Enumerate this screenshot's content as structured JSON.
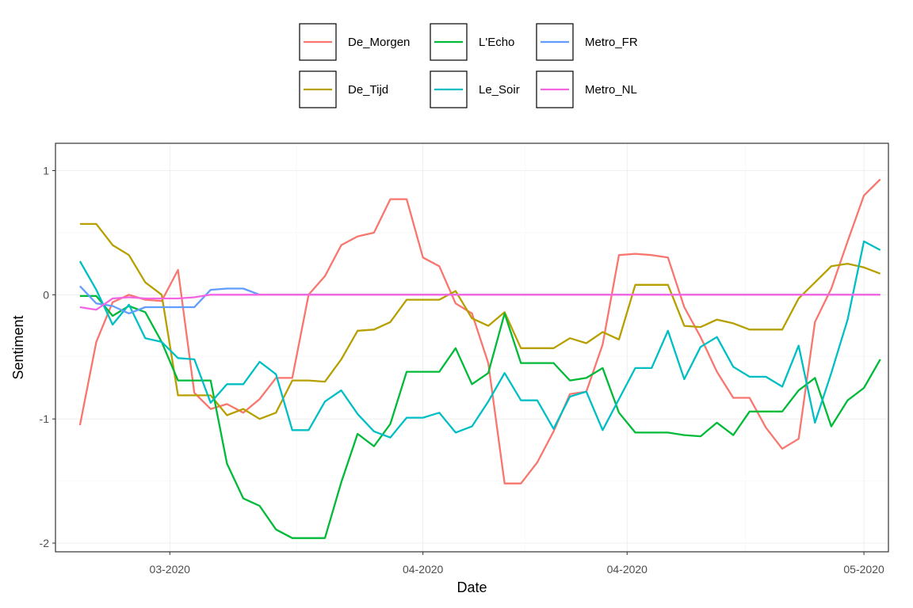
{
  "chart_data": {
    "type": "line",
    "title": "",
    "xlabel": "Date",
    "ylabel": "Sentiment",
    "x_ticks": [
      {
        "label": "03-2020",
        "date": "2020-03-01"
      },
      {
        "label": "04-2020",
        "date": "2020-04-01"
      },
      {
        "label": "04-2020",
        "date": "2020-04-26"
      },
      {
        "label": "05-2020",
        "date": "2020-05-25"
      }
    ],
    "y_ticks": [
      1,
      0,
      -1,
      -2
    ],
    "y_tick_labels": [
      "1",
      "0",
      "-1",
      "-2"
    ],
    "xlim": [
      "2020-02-16",
      "2020-05-28"
    ],
    "ylim": [
      -2.07,
      1.22
    ],
    "grid": true,
    "legend_position": "top",
    "x": [
      "2020-02-19",
      "2020-02-21",
      "2020-02-23",
      "2020-02-25",
      "2020-02-27",
      "2020-02-29",
      "2020-03-02",
      "2020-03-04",
      "2020-03-06",
      "2020-03-08",
      "2020-03-10",
      "2020-03-12",
      "2020-03-14",
      "2020-03-16",
      "2020-03-18",
      "2020-03-20",
      "2020-03-22",
      "2020-03-24",
      "2020-03-26",
      "2020-03-28",
      "2020-03-30",
      "2020-04-01",
      "2020-04-03",
      "2020-04-05",
      "2020-04-07",
      "2020-04-09",
      "2020-04-11",
      "2020-04-13",
      "2020-04-15",
      "2020-04-17",
      "2020-04-19",
      "2020-04-21",
      "2020-04-23",
      "2020-04-25",
      "2020-04-27",
      "2020-04-29",
      "2020-05-01",
      "2020-05-03",
      "2020-05-05",
      "2020-05-07",
      "2020-05-09",
      "2020-05-11",
      "2020-05-13",
      "2020-05-15",
      "2020-05-17",
      "2020-05-19",
      "2020-05-21",
      "2020-05-23",
      "2020-05-25",
      "2020-05-27"
    ],
    "series": [
      {
        "name": "De_Morgen",
        "color": "#F8766D",
        "values": [
          -1.05,
          -0.38,
          -0.06,
          0.0,
          -0.04,
          -0.05,
          0.2,
          -0.79,
          -0.92,
          -0.88,
          -0.95,
          -0.84,
          -0.67,
          -0.67,
          0.0,
          0.15,
          0.4,
          0.47,
          0.5,
          0.77,
          0.77,
          0.3,
          0.23,
          -0.07,
          -0.15,
          -0.55,
          -1.52,
          -1.52,
          -1.35,
          -1.1,
          -0.8,
          -0.78,
          -0.4,
          0.32,
          0.33,
          0.32,
          0.3,
          -0.1,
          -0.34,
          -0.62,
          -0.83,
          -0.83,
          -1.07,
          -1.24,
          -1.16,
          -0.22,
          0.05,
          0.43,
          0.8,
          0.93
        ]
      },
      {
        "name": "De_Tijd",
        "color": "#B79F00",
        "values": [
          0.57,
          0.57,
          0.4,
          0.32,
          0.1,
          0.0,
          -0.81,
          -0.81,
          -0.81,
          -0.97,
          -0.92,
          -1.0,
          -0.95,
          -0.69,
          -0.69,
          -0.7,
          -0.52,
          -0.29,
          -0.28,
          -0.22,
          -0.04,
          -0.04,
          -0.04,
          0.03,
          -0.19,
          -0.25,
          -0.14,
          -0.43,
          -0.43,
          -0.43,
          -0.35,
          -0.39,
          -0.3,
          -0.36,
          0.08,
          0.08,
          0.08,
          -0.25,
          -0.26,
          -0.2,
          -0.23,
          -0.28,
          -0.28,
          -0.28,
          -0.03,
          0.1,
          0.23,
          0.25,
          0.22,
          0.17
        ]
      },
      {
        "name": "L'Echo",
        "color": "#00BA38",
        "values": [
          -0.01,
          -0.01,
          -0.17,
          -0.09,
          -0.14,
          -0.38,
          -0.69,
          -0.69,
          -0.69,
          -1.36,
          -1.64,
          -1.7,
          -1.89,
          -1.96,
          -1.96,
          -1.96,
          -1.51,
          -1.12,
          -1.22,
          -1.04,
          -0.62,
          -0.62,
          -0.62,
          -0.43,
          -0.72,
          -0.63,
          -0.15,
          -0.55,
          -0.55,
          -0.55,
          -0.69,
          -0.67,
          -0.59,
          -0.95,
          -1.11,
          -1.11,
          -1.11,
          -1.13,
          -1.14,
          -1.03,
          -1.13,
          -0.94,
          -0.94,
          -0.94,
          -0.77,
          -0.67,
          -1.06,
          -0.85,
          -0.75,
          -0.52
        ]
      },
      {
        "name": "Le_Soir",
        "color": "#00BFC4",
        "values": [
          0.27,
          0.04,
          -0.24,
          -0.08,
          -0.35,
          -0.38,
          -0.51,
          -0.52,
          -0.87,
          -0.72,
          -0.72,
          -0.54,
          -0.64,
          -1.09,
          -1.09,
          -0.86,
          -0.77,
          -0.96,
          -1.1,
          -1.15,
          -0.99,
          -0.99,
          -0.95,
          -1.11,
          -1.06,
          -0.86,
          -0.63,
          -0.85,
          -0.85,
          -1.08,
          -0.82,
          -0.78,
          -1.09,
          -0.84,
          -0.59,
          -0.59,
          -0.29,
          -0.68,
          -0.42,
          -0.34,
          -0.58,
          -0.66,
          -0.66,
          -0.74,
          -0.41,
          -1.03,
          -0.63,
          -0.2,
          0.43,
          0.36
        ]
      },
      {
        "name": "Metro_FR",
        "color": "#619CFF",
        "values": [
          0.07,
          -0.07,
          -0.09,
          -0.15,
          -0.1,
          -0.1,
          -0.1,
          -0.1,
          0.04,
          0.05,
          0.05,
          0.0,
          0.0,
          0.0,
          0.0,
          0.0,
          0.0,
          0.0,
          0.0,
          0.0,
          0.0,
          0.0,
          0.0,
          0.0,
          0.0,
          0.0,
          0.0,
          0.0,
          0.0,
          0.0,
          0.0,
          0.0,
          0.0,
          0.0,
          0.0,
          0.0,
          0.0,
          0.0,
          0.0,
          0.0,
          0.0,
          0.0,
          0.0,
          0.0,
          0.0,
          0.0,
          0.0,
          0.0,
          0.0,
          0.0
        ]
      },
      {
        "name": "Metro_NL",
        "color": "#F564E3",
        "values": [
          -0.1,
          -0.12,
          -0.03,
          -0.02,
          -0.03,
          -0.03,
          -0.03,
          -0.02,
          0.0,
          0.0,
          0.0,
          0.0,
          0.0,
          0.0,
          0.0,
          0.0,
          0.0,
          0.0,
          0.0,
          0.0,
          0.0,
          0.0,
          0.0,
          0.0,
          0.0,
          0.0,
          0.0,
          0.0,
          0.0,
          0.0,
          0.0,
          0.0,
          0.0,
          0.0,
          0.0,
          0.0,
          0.0,
          0.0,
          0.0,
          0.0,
          0.0,
          0.0,
          0.0,
          0.0,
          0.0,
          0.0,
          0.0,
          0.0,
          0.0,
          0.0
        ]
      }
    ]
  }
}
